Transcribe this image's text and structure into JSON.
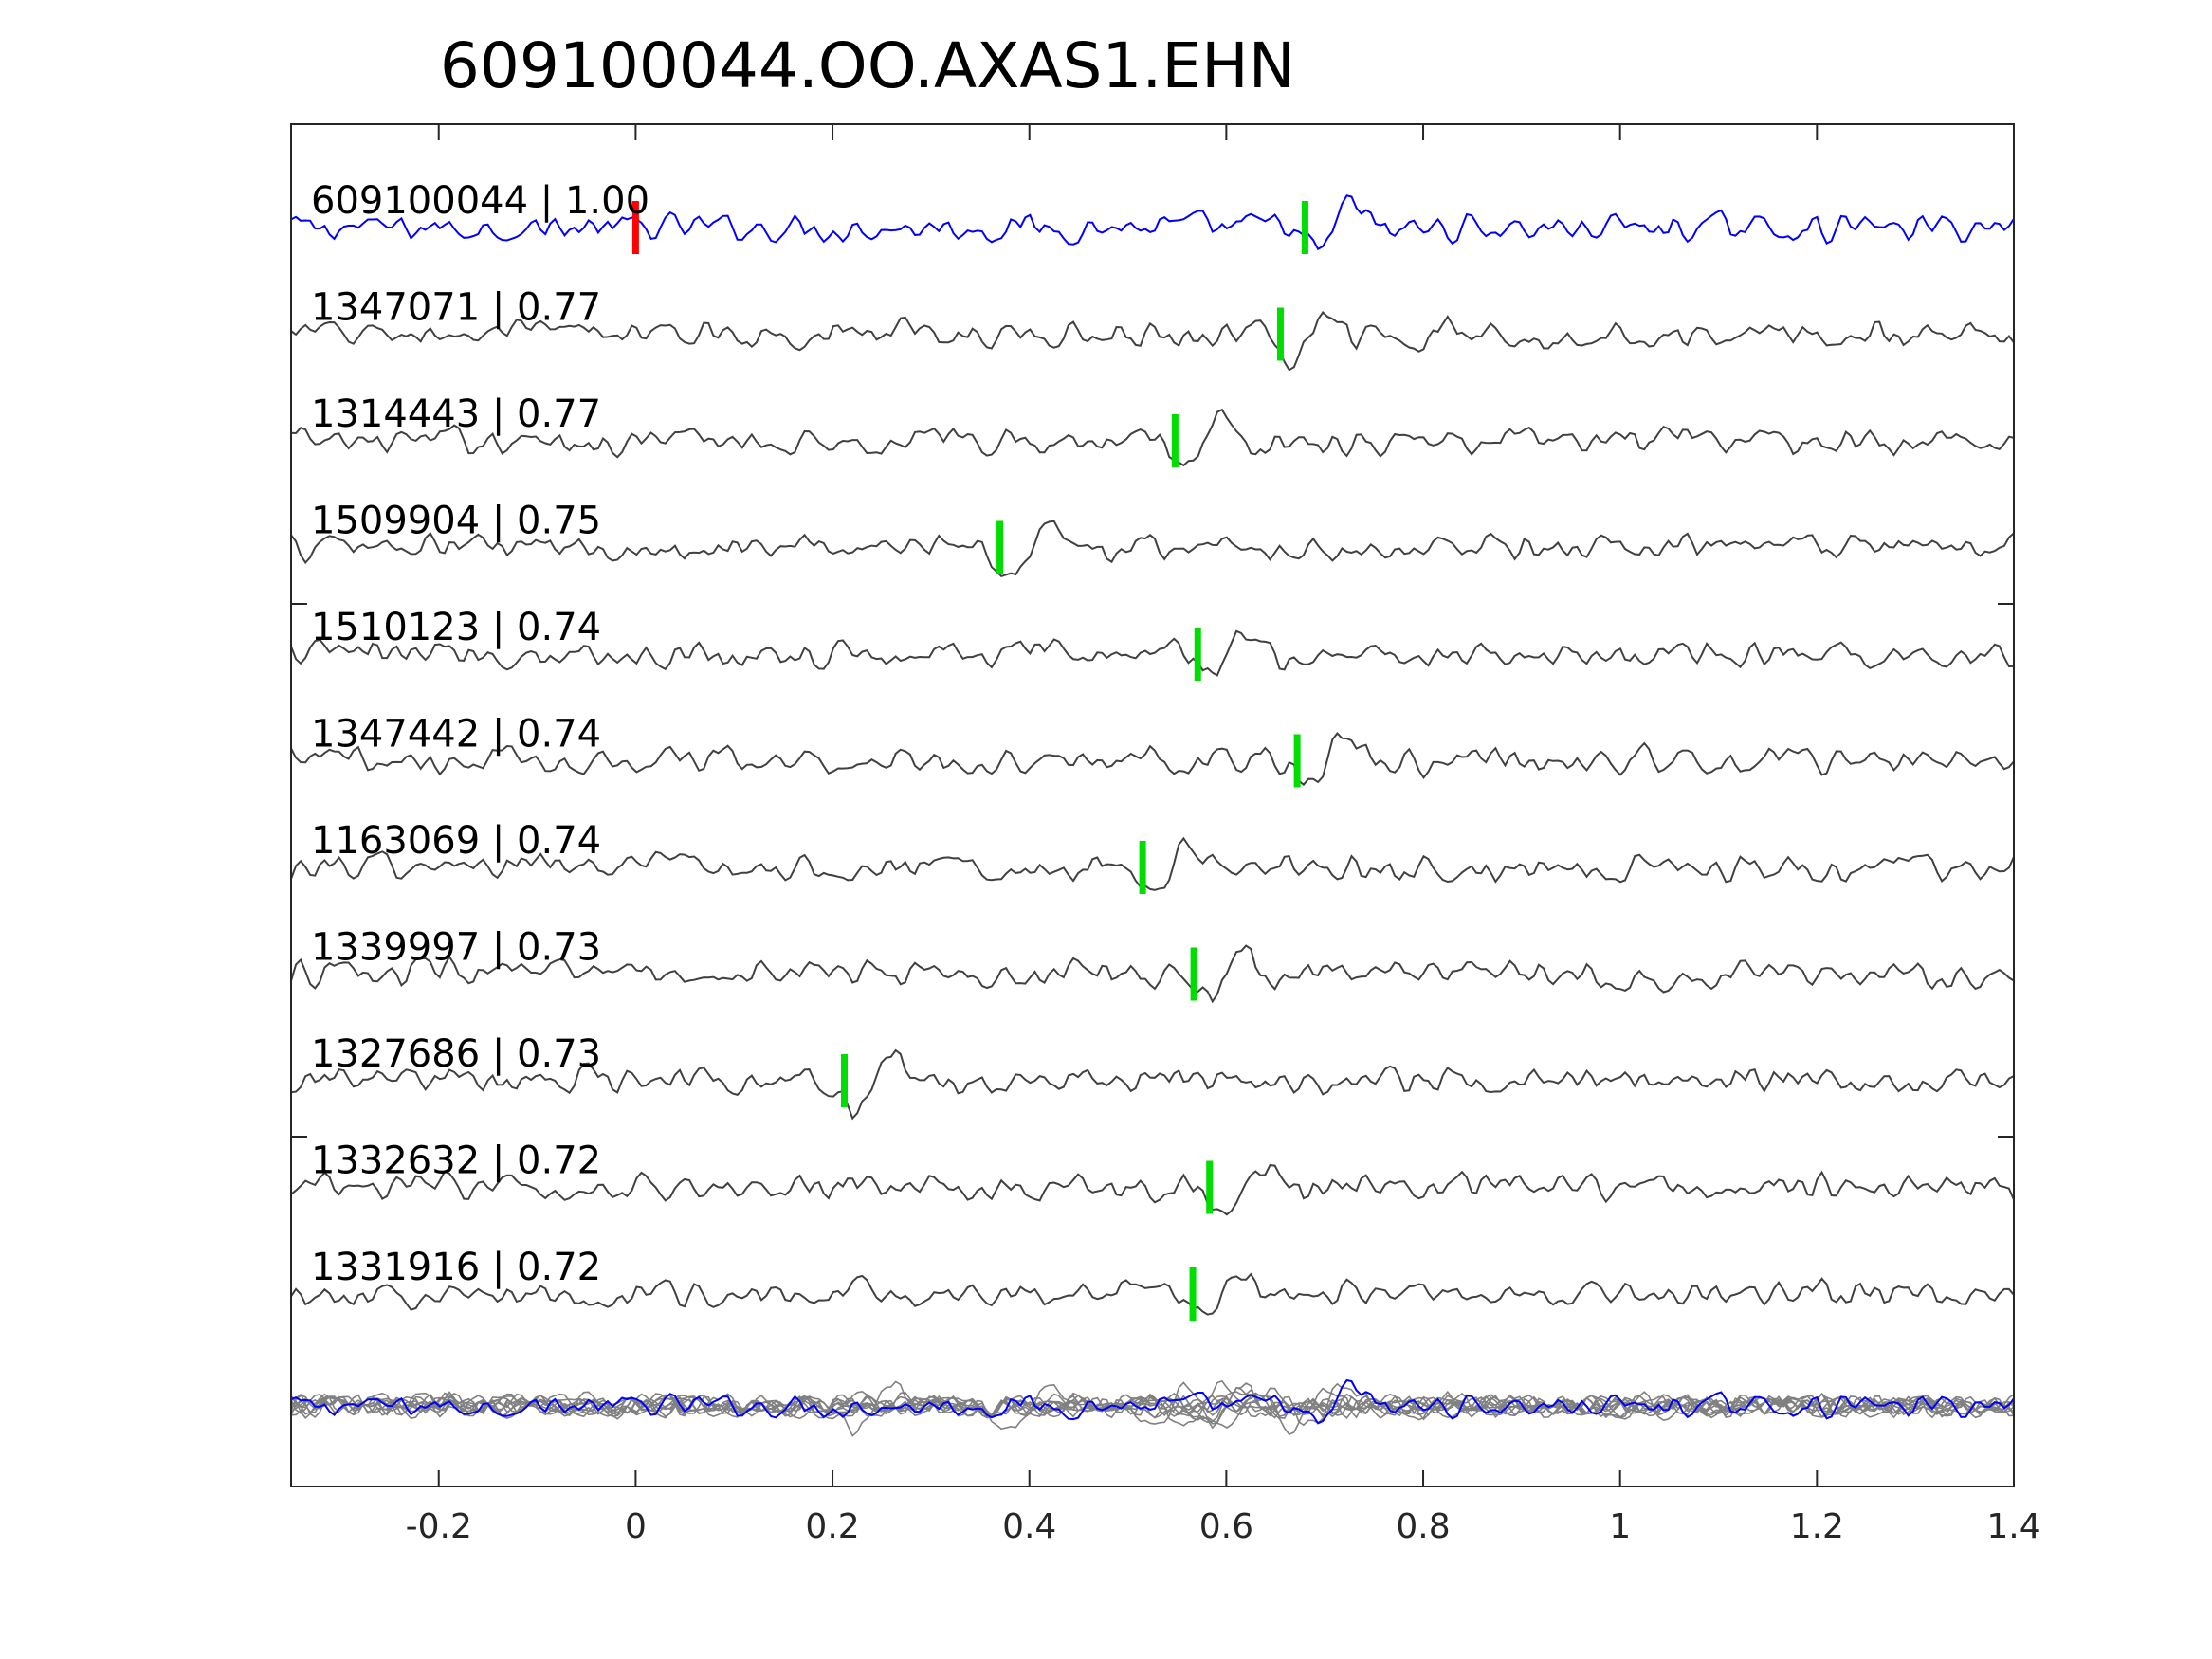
{
  "chart_data": {
    "type": "line",
    "title": "609100044.OO.AXAS1.EHN",
    "xlabel": "",
    "ylabel": "",
    "xlim": [
      -0.35,
      1.4
    ],
    "xticks": [
      {
        "value": -0.2,
        "label": "-0.2"
      },
      {
        "value": 0,
        "label": "0"
      },
      {
        "value": 0.2,
        "label": "0.2"
      },
      {
        "value": 0.4,
        "label": "0.4"
      },
      {
        "value": 0.6,
        "label": "0.6"
      },
      {
        "value": 0.8,
        "label": "0.8"
      },
      {
        "value": 1,
        "label": "1"
      },
      {
        "value": 1.2,
        "label": "1.2"
      },
      {
        "value": 1.4,
        "label": "1.4"
      }
    ],
    "grid": false,
    "template_color": "#0000ff",
    "trace_color": "#404040",
    "stack_color": "#808080",
    "reference_pick_color": "#ff0000",
    "pick_color": "#00dd00",
    "reference_pick_time": 0.0,
    "traces": [
      {
        "label": "609100044 | 1.00",
        "pick": 0.68,
        "template": true
      },
      {
        "label": "1347071 | 0.77",
        "pick": 0.655
      },
      {
        "label": "1314443 | 0.77",
        "pick": 0.548
      },
      {
        "label": "1509904 | 0.75",
        "pick": 0.37
      },
      {
        "label": "1510123 | 0.74",
        "pick": 0.571
      },
      {
        "label": "1347442 | 0.74",
        "pick": 0.672
      },
      {
        "label": "1163069 | 0.74",
        "pick": 0.515
      },
      {
        "label": "1339997 | 0.73",
        "pick": 0.567
      },
      {
        "label": "1327686 | 0.73",
        "pick": 0.212
      },
      {
        "label": "1332632 | 0.72",
        "pick": 0.583
      },
      {
        "label": "1331916 | 0.72",
        "pick": 0.566
      }
    ]
  }
}
